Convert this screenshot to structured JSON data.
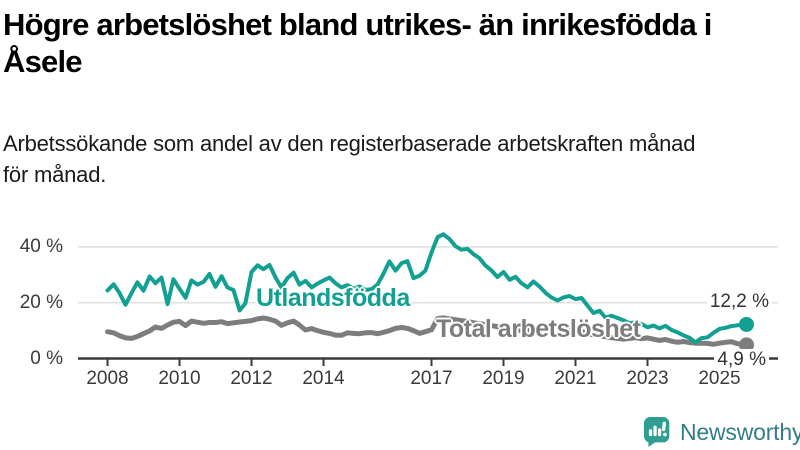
{
  "header": {
    "title_lines": [
      "Högre arbetslöshet bland utrikes- än inrikesfödda i",
      "Åsele"
    ],
    "subtitle_lines": [
      "Arbetssökande som andel av den registerbaserade arbetskraften månad",
      "för månad."
    ]
  },
  "chart_data": {
    "type": "line",
    "unit": "%",
    "grid": true,
    "x_axis": {
      "tick_values": [
        2008,
        2010,
        2012,
        2014,
        2017,
        2019,
        2021,
        2023,
        2025
      ],
      "tick_labels": [
        "2008",
        "2010",
        "2012",
        "2014",
        "2017",
        "2019",
        "2021",
        "2023",
        "2025"
      ],
      "range": [
        2008,
        2025.75
      ]
    },
    "y_axis": {
      "tick_values": [
        0,
        20,
        40
      ],
      "tick_labels": [
        "0 %",
        "20 %",
        "40 %"
      ],
      "range": [
        0,
        48
      ]
    },
    "x": [
      2008,
      2008.17,
      2008.33,
      2008.5,
      2008.67,
      2008.83,
      2009,
      2009.17,
      2009.33,
      2009.5,
      2009.67,
      2009.83,
      2010,
      2010.17,
      2010.33,
      2010.5,
      2010.67,
      2010.83,
      2011,
      2011.17,
      2011.33,
      2011.5,
      2011.67,
      2011.83,
      2012,
      2012.17,
      2012.33,
      2012.5,
      2012.67,
      2012.83,
      2013,
      2013.17,
      2013.33,
      2013.5,
      2013.67,
      2013.83,
      2014,
      2014.17,
      2014.33,
      2014.5,
      2014.67,
      2014.83,
      2015,
      2015.17,
      2015.33,
      2015.5,
      2015.67,
      2015.83,
      2016,
      2016.17,
      2016.33,
      2016.5,
      2016.67,
      2016.83,
      2017,
      2017.17,
      2017.33,
      2017.5,
      2017.67,
      2017.83,
      2018,
      2018.17,
      2018.33,
      2018.5,
      2018.67,
      2018.83,
      2019,
      2019.17,
      2019.33,
      2019.5,
      2019.67,
      2019.83,
      2020,
      2020.17,
      2020.33,
      2020.5,
      2020.67,
      2020.83,
      2021,
      2021.17,
      2021.33,
      2021.5,
      2021.67,
      2021.83,
      2022,
      2022.17,
      2022.33,
      2022.5,
      2022.67,
      2022.83,
      2023,
      2023.17,
      2023.33,
      2023.5,
      2023.67,
      2023.83,
      2024,
      2024.17,
      2024.33,
      2024.5,
      2024.67,
      2024.83,
      2025,
      2025.17,
      2025.33,
      2025.5,
      2025.67,
      2025.75
    ],
    "series": [
      {
        "name": "Utlandsfödda",
        "color": "#12a093",
        "end_label": "12,2 %",
        "end_value": 12.2,
        "values": [
          24.4,
          26.6,
          23.5,
          19.3,
          23.5,
          27.3,
          24.3,
          29.4,
          27,
          29,
          19.5,
          28.4,
          25,
          21.8,
          28,
          26.5,
          27.5,
          30.3,
          25.7,
          29.5,
          25.5,
          24.5,
          17.2,
          19.8,
          31,
          33.4,
          32,
          33.5,
          29,
          25.5,
          28.8,
          30.8,
          26.5,
          27.8,
          25.5,
          26.8,
          28,
          29,
          27,
          25.5,
          26.3,
          25,
          25.8,
          24.6,
          24.8,
          26.5,
          30.5,
          34.8,
          31.5,
          34.2,
          34.9,
          28.8,
          29.7,
          31.5,
          38,
          43.5,
          44.5,
          42.8,
          40.2,
          39,
          39.3,
          37.4,
          36,
          33.3,
          31.5,
          29.2,
          31,
          28.2,
          29.3,
          27,
          25.5,
          27.6,
          25.8,
          23.5,
          21.9,
          20.8,
          21.9,
          22.4,
          21.3,
          21.7,
          19,
          16.3,
          17.1,
          14.7,
          15.3,
          14.5,
          13.7,
          12.6,
          13,
          12.4,
          11.2,
          11.8,
          10.8,
          11.7,
          10.2,
          9.4,
          8.3,
          7.4,
          5.8,
          7.3,
          7.6,
          9.2,
          10.6,
          11,
          11.6,
          11.9,
          12,
          12.2
        ]
      },
      {
        "name": "Total arbetslöshet",
        "color": "#7d7d7d",
        "end_label": "4,9 %",
        "end_value": 4.9,
        "values": [
          9.6,
          9.2,
          8.2,
          7.4,
          7.2,
          7.9,
          8.9,
          9.9,
          11.3,
          10.8,
          12,
          13,
          13.3,
          11.8,
          13.4,
          13,
          12.6,
          12.9,
          12.9,
          13.2,
          12.5,
          12.8,
          13.1,
          13.3,
          13.6,
          14.2,
          14.5,
          14.1,
          13.4,
          11.9,
          12.8,
          13.4,
          12,
          10.2,
          10.7,
          10,
          9.4,
          9,
          8.4,
          8.3,
          9.2,
          9,
          8.9,
          9.2,
          9.3,
          8.9,
          9.4,
          10,
          10.8,
          11.1,
          10.8,
          10,
          9,
          9.6,
          10.3,
          14.3,
          14.6,
          14.2,
          13.9,
          13.6,
          13.3,
          12.8,
          12.5,
          12.2,
          11.8,
          11.4,
          10.8,
          10.5,
          10.3,
          10,
          10.2,
          10.5,
          10.8,
          11.3,
          11.7,
          11.5,
          11.2,
          10.9,
          10.4,
          9.7,
          9,
          8.4,
          8.1,
          7.8,
          7.5,
          7.2,
          6.9,
          7.2,
          7.5,
          7.1,
          7.4,
          6.9,
          6.5,
          6.8,
          6.2,
          5.8,
          6.1,
          5.7,
          5.5,
          5.5,
          5.4,
          5.1,
          5.5,
          5.8,
          6,
          5.3,
          5,
          4.9
        ]
      }
    ]
  },
  "branding": {
    "name": "Newsworthy",
    "icon_color": "#2f9e92",
    "text_color": "#337d89"
  }
}
